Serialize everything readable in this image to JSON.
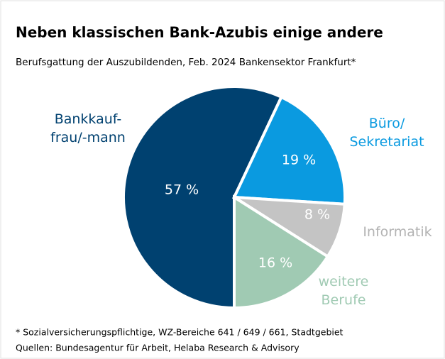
{
  "chart_data": {
    "type": "pie",
    "title": "Neben klassischen Bank-Azubis einige andere",
    "subtitle": "Berufsgattung der Auszubildenden, Feb. 2024 Bankensektor Frankfurt*",
    "categories": [
      [
        "Bankkauf-",
        "frau/-mann"
      ],
      [
        "Büro/",
        "Sekretariat"
      ],
      [
        "Informatik"
      ],
      [
        "weitere",
        "Berufe"
      ]
    ],
    "values": [
      57,
      19,
      8,
      16
    ],
    "value_labels": [
      "57 %",
      "19 %",
      "8 %",
      "16 %"
    ],
    "colors": [
      "#004170",
      "#0a9ae0",
      "#c4c4c4",
      "#a0cab3"
    ],
    "footnotes": [
      "* Sozialversicherungspflichtige, WZ-Bereiche 641 / 649 / 661, Stadtgebiet",
      "Quellen: Bundesagentur für Arbeit, Helaba Research & Advisory"
    ]
  }
}
